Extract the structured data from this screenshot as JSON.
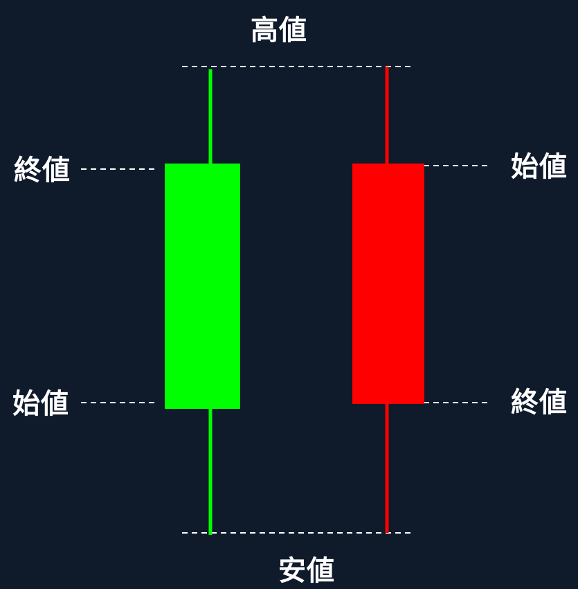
{
  "labels": {
    "high": "高値",
    "low": "安値",
    "bullish_close": "終値",
    "bullish_open": "始値",
    "bearish_open": "始値",
    "bearish_close": "終値"
  },
  "colors": {
    "background": "#0f1a2b",
    "bullish": "#00ff00",
    "bearish": "#ff0000",
    "guide": "#ffffff",
    "text": "#ffffff"
  }
}
